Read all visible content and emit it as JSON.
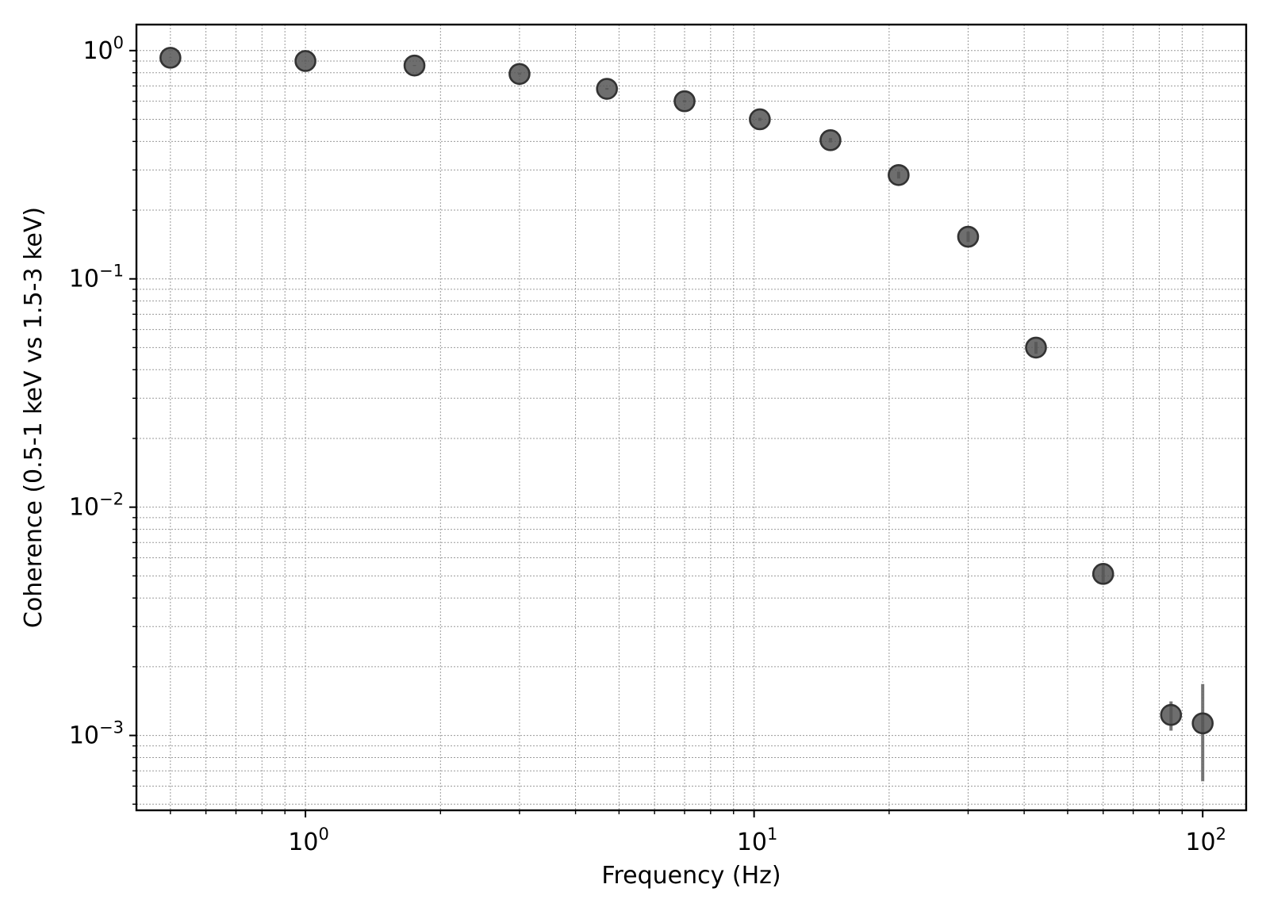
{
  "chart_data": {
    "type": "scatter",
    "title": "",
    "xlabel": "Frequency (Hz)",
    "ylabel": "Coherence (0.5-1 keV vs 1.5-3 keV)",
    "xscale": "log",
    "yscale": "log",
    "xlim": [
      0.42,
      125
    ],
    "ylim": [
      0.00047,
      1.3
    ],
    "grid": true,
    "x_ticks": [
      {
        "value": 1,
        "base": "10",
        "exp": "0"
      },
      {
        "value": 10,
        "base": "10",
        "exp": "1"
      },
      {
        "value": 100,
        "base": "10",
        "exp": "2"
      }
    ],
    "y_ticks": [
      {
        "value": 1,
        "base": "10",
        "exp": "0"
      },
      {
        "value": 0.1,
        "base": "10",
        "exp": "−1"
      },
      {
        "value": 0.01,
        "base": "10",
        "exp": "−2"
      },
      {
        "value": 0.001,
        "base": "10",
        "exp": "−3"
      }
    ],
    "series": [
      {
        "marker_color": "#555555",
        "points": [
          {
            "x": 0.5,
            "y": 0.93,
            "yerr": 0.002
          },
          {
            "x": 1.0,
            "y": 0.9,
            "yerr": 0.003
          },
          {
            "x": 1.75,
            "y": 0.86,
            "yerr": 0.004
          },
          {
            "x": 3.0,
            "y": 0.79,
            "yerr": 0.005
          },
          {
            "x": 4.7,
            "y": 0.68,
            "yerr": 0.006
          },
          {
            "x": 7.0,
            "y": 0.6,
            "yerr": 0.007
          },
          {
            "x": 10.3,
            "y": 0.5,
            "yerr": 0.008
          },
          {
            "x": 14.8,
            "y": 0.405,
            "yerr": 0.009
          },
          {
            "x": 21.0,
            "y": 0.285,
            "yerr": 0.01
          },
          {
            "x": 30.0,
            "y": 0.153,
            "yerr": 0.008
          },
          {
            "x": 42.5,
            "y": 0.05,
            "yerr": 0.003
          },
          {
            "x": 60.0,
            "y": 0.0051,
            "yerr": 0.0005
          },
          {
            "x": 85.0,
            "y": 0.00123,
            "yerr": 0.00018
          },
          {
            "x": 100.0,
            "y": 0.00113,
            "yerr_low": 0.0005,
            "yerr_high": 0.00055
          }
        ]
      }
    ]
  }
}
